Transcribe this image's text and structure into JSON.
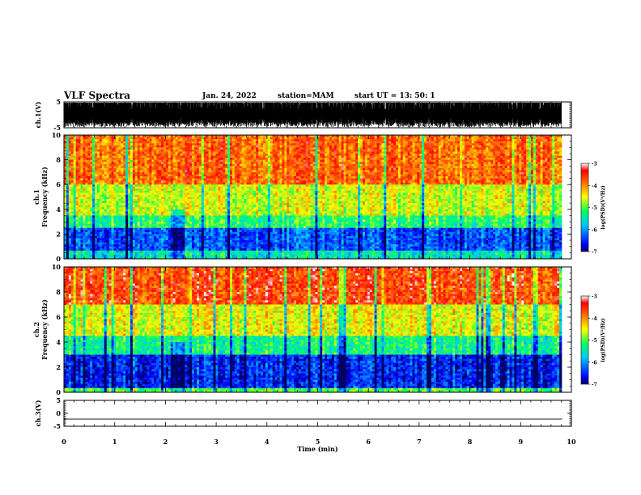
{
  "header": {
    "title": "VLF Spectra",
    "date": "Jan. 24, 2022",
    "station": "station=MAM",
    "start": "start UT =  13: 50: 1"
  },
  "chart_data": [
    {
      "type": "line",
      "name": "ch1-waveform",
      "ylabel": "ch.1(V)",
      "ylim": [
        -5,
        5
      ],
      "yticks": [
        "5",
        "-5"
      ],
      "xlim": [
        0,
        10
      ],
      "description_values": {
        "typical_amplitude_V": [
          -5,
          5
        ]
      }
    },
    {
      "type": "heatmap",
      "name": "ch1-spectrogram",
      "ylabel_top": "ch.1",
      "ylabel": "Frequency (kHz)",
      "ylim": [
        0,
        10
      ],
      "yticks": [
        "0",
        "2",
        "4",
        "6",
        "8",
        "10"
      ],
      "xlim": [
        0,
        10
      ],
      "colorbar": {
        "label": "log(PSD)(V²/Hz)",
        "range": [
          -7,
          -3
        ],
        "ticks": [
          "-3",
          "-4",
          "-5",
          "-6",
          "-7"
        ]
      },
      "bands_log_psd": [
        {
          "freq_kHz": [
            0,
            0.6
          ],
          "level": -5.5
        },
        {
          "freq_kHz": [
            0.6,
            2.5
          ],
          "level": -6.3
        },
        {
          "freq_kHz": [
            2.5,
            3.5
          ],
          "level": -5.2
        },
        {
          "freq_kHz": [
            3.5,
            6
          ],
          "level": -4.6
        },
        {
          "freq_kHz": [
            6,
            10
          ],
          "level": -3.8
        }
      ]
    },
    {
      "type": "heatmap",
      "name": "ch2-spectrogram",
      "ylabel_top": "ch.2",
      "ylabel": "Frequency (kHz)",
      "ylim": [
        0,
        10
      ],
      "yticks": [
        "0",
        "2",
        "4",
        "6",
        "8",
        "10"
      ],
      "xlim": [
        0,
        10
      ],
      "colorbar": {
        "label": "log(PSD)(V²/Hz)",
        "range": [
          -7,
          -3
        ],
        "ticks": [
          "-3",
          "-4",
          "-5",
          "-6",
          "-7"
        ]
      },
      "bands_log_psd": [
        {
          "freq_kHz": [
            0,
            0.4
          ],
          "level": -5.0
        },
        {
          "freq_kHz": [
            0.4,
            3
          ],
          "level": -6.5
        },
        {
          "freq_kHz": [
            3,
            4.5
          ],
          "level": -5.3
        },
        {
          "freq_kHz": [
            4.5,
            7
          ],
          "level": -4.5
        },
        {
          "freq_kHz": [
            7,
            10
          ],
          "level": -3.6
        }
      ]
    },
    {
      "type": "line",
      "name": "ch3-waveform",
      "ylabel": "ch.3(V)",
      "ylim": [
        -5,
        5
      ],
      "yticks": [
        "5",
        "0",
        "-5"
      ],
      "xlim": [
        0,
        10
      ],
      "x": [
        0,
        9.82
      ],
      "y": [
        -2.2,
        -2.2
      ]
    }
  ],
  "xaxis": {
    "label": "Time (min)",
    "ticks": [
      "0",
      "1",
      "2",
      "3",
      "4",
      "5",
      "6",
      "7",
      "8",
      "9",
      "10"
    ]
  }
}
